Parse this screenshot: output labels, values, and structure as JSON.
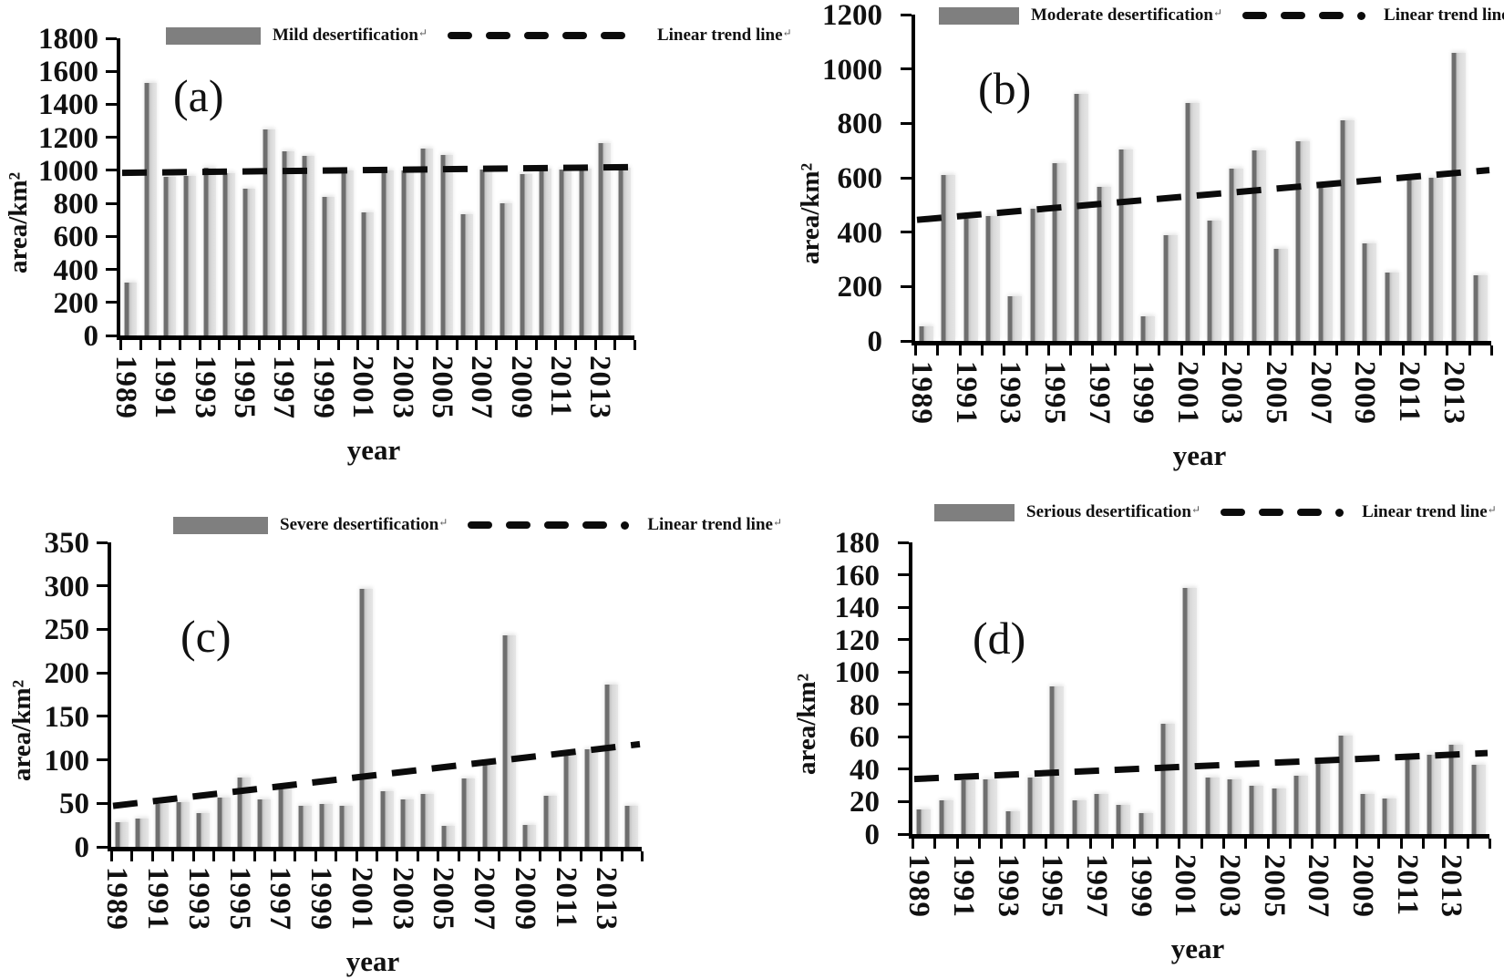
{
  "figure": {
    "x_axis_title": "year",
    "y_axis_title": "area/km²",
    "return_glyph": "↵",
    "colors": {
      "bar_light": "#d9d9d9",
      "bar_dark": "#6e6e6e",
      "legend_swatch": "#7f7f7f",
      "trend_line": "#0b0b0b",
      "axis": "#000000"
    }
  },
  "chart_data": [
    {
      "type": "bar",
      "panel_label": "(a)",
      "series": [
        {
          "name": "Mild desertification",
          "values": [
            320,
            1530,
            960,
            965,
            1015,
            985,
            890,
            1250,
            1115,
            1085,
            840,
            1000,
            745,
            1000,
            1000,
            1130,
            1095,
            735,
            1005,
            800,
            975,
            1010,
            1005,
            1010,
            1165,
            1015
          ]
        }
      ],
      "trend_line": {
        "name": "Linear trend line",
        "start_value": 985,
        "end_value": 1020
      },
      "categories": [
        1989,
        1990,
        1991,
        1992,
        1993,
        1994,
        1995,
        1996,
        1997,
        1998,
        1999,
        2000,
        2001,
        2002,
        2003,
        2004,
        2005,
        2006,
        2007,
        2008,
        2009,
        2010,
        2011,
        2012,
        2013,
        2014
      ],
      "x_tick_labels": [
        "1989",
        "1991",
        "1993",
        "1995",
        "1997",
        "1999",
        "2001",
        "2003",
        "2005",
        "2007",
        "2009",
        "2011",
        "2013"
      ],
      "y_tick_labels": [
        "1800",
        "1600",
        "1400",
        "1200",
        "1000",
        "800",
        "600",
        "400",
        "200",
        "0"
      ],
      "xlabel": "year",
      "ylabel": "area/km²",
      "ylim": [
        0,
        1800
      ],
      "ytick_step": 200,
      "legend_position": "top",
      "grid": false
    },
    {
      "type": "bar",
      "panel_label": "(b)",
      "series": [
        {
          "name": "Moderate desertification",
          "values": [
            55,
            610,
            450,
            460,
            165,
            487,
            655,
            910,
            565,
            705,
            90,
            388,
            875,
            442,
            635,
            700,
            340,
            735,
            570,
            810,
            357,
            250,
            602,
            600,
            1060,
            240
          ]
        }
      ],
      "trend_line": {
        "name": "Linear trend line",
        "start_value": 445,
        "end_value": 628
      },
      "categories": [
        1989,
        1990,
        1991,
        1992,
        1993,
        1994,
        1995,
        1996,
        1997,
        1998,
        1999,
        2000,
        2001,
        2002,
        2003,
        2004,
        2005,
        2006,
        2007,
        2008,
        2009,
        2010,
        2011,
        2012,
        2013,
        2014
      ],
      "x_tick_labels": [
        "1989",
        "1991",
        "1993",
        "1995",
        "1997",
        "1999",
        "2001",
        "2003",
        "2005",
        "2007",
        "2009",
        "2011",
        "2013"
      ],
      "y_tick_labels": [
        "1200",
        "1000",
        "800",
        "600",
        "400",
        "200",
        "0"
      ],
      "xlabel": "year",
      "ylabel": "area/km²",
      "ylim": [
        0,
        1200
      ],
      "ytick_step": 200,
      "legend_position": "top",
      "grid": false
    },
    {
      "type": "bar",
      "panel_label": "(c)",
      "series": [
        {
          "name": "Severe desertification",
          "values": [
            28,
            32,
            49,
            51,
            39,
            57,
            80,
            54,
            68,
            47,
            49,
            47,
            297,
            64,
            54,
            61,
            24,
            79,
            95,
            243,
            25,
            59,
            108,
            112,
            187,
            47
          ]
        }
      ],
      "trend_line": {
        "name": "Linear trend line",
        "start_value": 47,
        "end_value": 118
      },
      "categories": [
        1989,
        1990,
        1991,
        1992,
        1993,
        1994,
        1995,
        1996,
        1997,
        1998,
        1999,
        2000,
        2001,
        2002,
        2003,
        2004,
        2005,
        2006,
        2007,
        2008,
        2009,
        2010,
        2011,
        2012,
        2013,
        2014
      ],
      "x_tick_labels": [
        "1989",
        "1991",
        "1993",
        "1995",
        "1997",
        "1999",
        "2001",
        "2003",
        "2005",
        "2007",
        "2009",
        "2011",
        "2013"
      ],
      "y_tick_labels": [
        "350",
        "300",
        "250",
        "200",
        "150",
        "100",
        "50",
        "0"
      ],
      "xlabel": "year",
      "ylabel": "area/km²",
      "ylim": [
        0,
        350
      ],
      "ytick_step": 50,
      "legend_position": "top",
      "grid": false
    },
    {
      "type": "bar",
      "panel_label": "(d)",
      "series": [
        {
          "name": "Serious desertification",
          "values": [
            15,
            21,
            33,
            34,
            14,
            35,
            91,
            21,
            25,
            18,
            13,
            68,
            152,
            35,
            34,
            30,
            28,
            36,
            44,
            61,
            25,
            22,
            48,
            49,
            55,
            43
          ]
        }
      ],
      "trend_line": {
        "name": "Linear trend line",
        "start_value": 34,
        "end_value": 50
      },
      "categories": [
        1989,
        1990,
        1991,
        1992,
        1993,
        1994,
        1995,
        1996,
        1997,
        1998,
        1999,
        2000,
        2001,
        2002,
        2003,
        2004,
        2005,
        2006,
        2007,
        2008,
        2009,
        2010,
        2011,
        2012,
        2013,
        2014
      ],
      "x_tick_labels": [
        "1989",
        "1991",
        "1993",
        "1995",
        "1997",
        "1999",
        "2001",
        "2003",
        "2005",
        "2007",
        "2009",
        "2011",
        "2013"
      ],
      "y_tick_labels": [
        "180",
        "160",
        "140",
        "120",
        "100",
        "80",
        "60",
        "40",
        "20",
        "0"
      ],
      "xlabel": "year",
      "ylabel": "area/km²",
      "ylim": [
        0,
        180
      ],
      "ytick_step": 20,
      "legend_position": "top",
      "grid": false
    }
  ]
}
